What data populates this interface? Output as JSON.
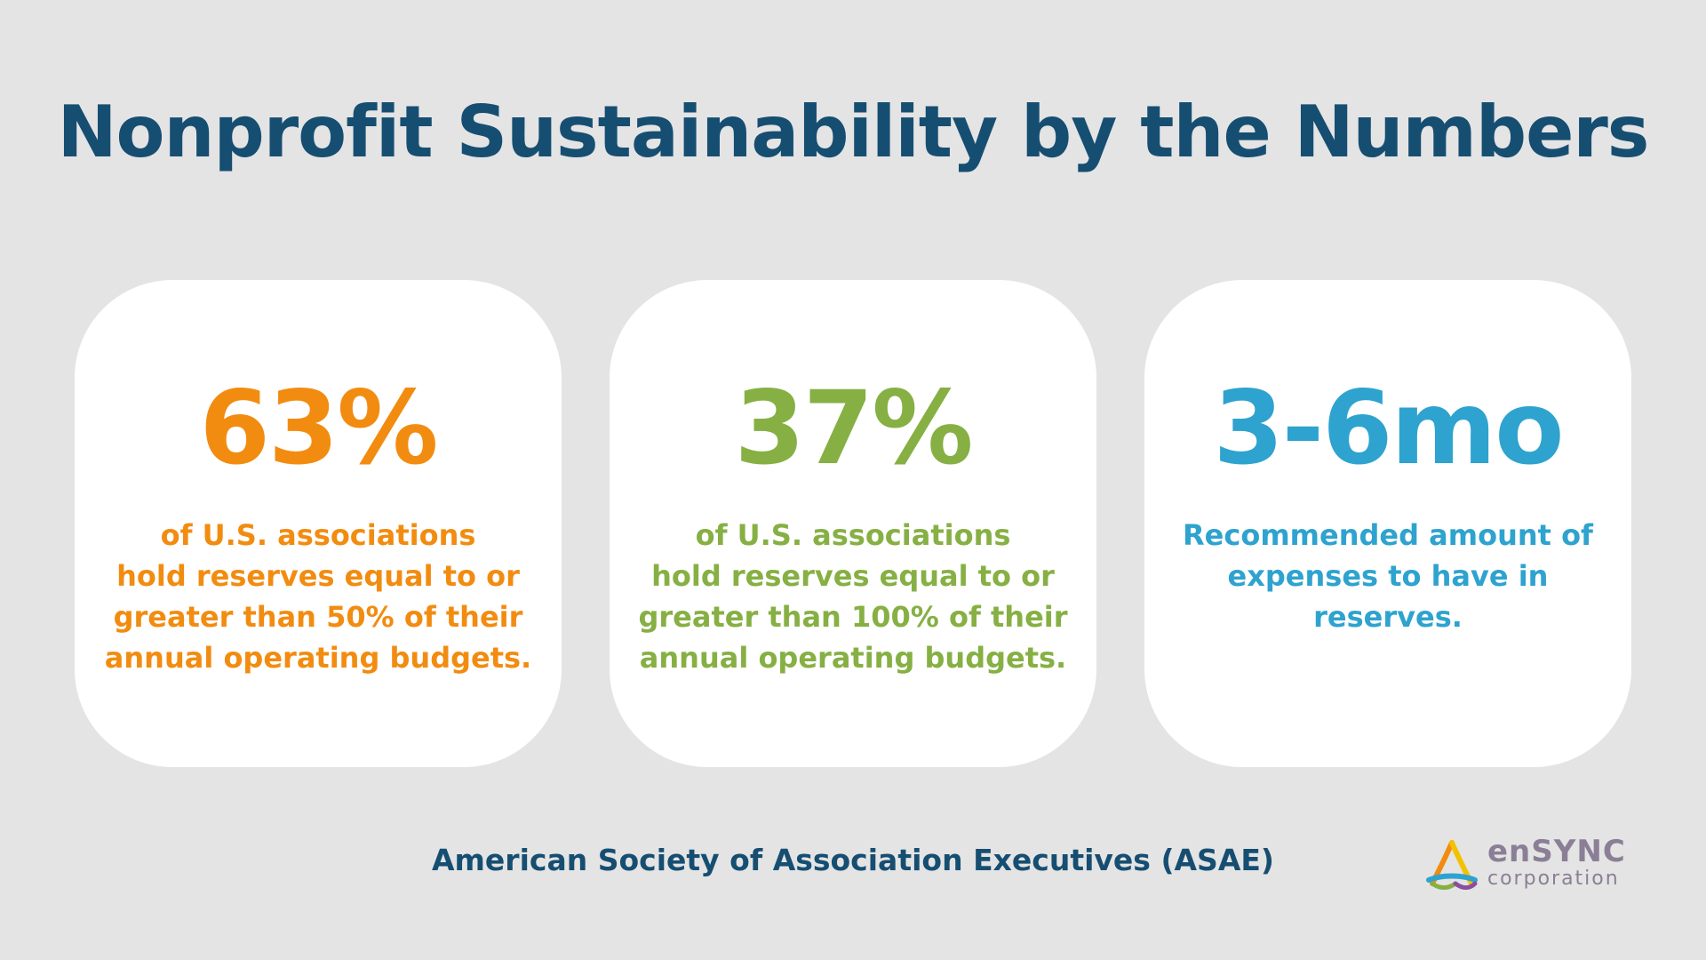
{
  "colors": {
    "background": "#e4e4e4",
    "title": "#164e72",
    "orange": "#f28c10",
    "green": "#86b043",
    "blue": "#2ea3cf",
    "logo_text": "#8a7f96"
  },
  "title": "Nonprofit Sustainability by the Numbers",
  "cards": [
    {
      "stat": "63%",
      "lines": [
        "of U.S. associations",
        "hold reserves equal to or",
        "greater than 50% of their",
        "annual operating budgets."
      ]
    },
    {
      "stat": "37%",
      "lines": [
        "of U.S. associations",
        "hold reserves equal to or",
        "greater than 100% of their",
        "annual operating budgets."
      ]
    },
    {
      "stat": "3-6mo",
      "lines": [
        "Recommended amount of",
        "expenses to have in",
        "reserves."
      ]
    }
  ],
  "source": "American Society of Association Executives (ASAE)",
  "logo": {
    "name": "enSYNC",
    "sub": "corporation",
    "icon": "ensync-triangle-logo-icon"
  }
}
